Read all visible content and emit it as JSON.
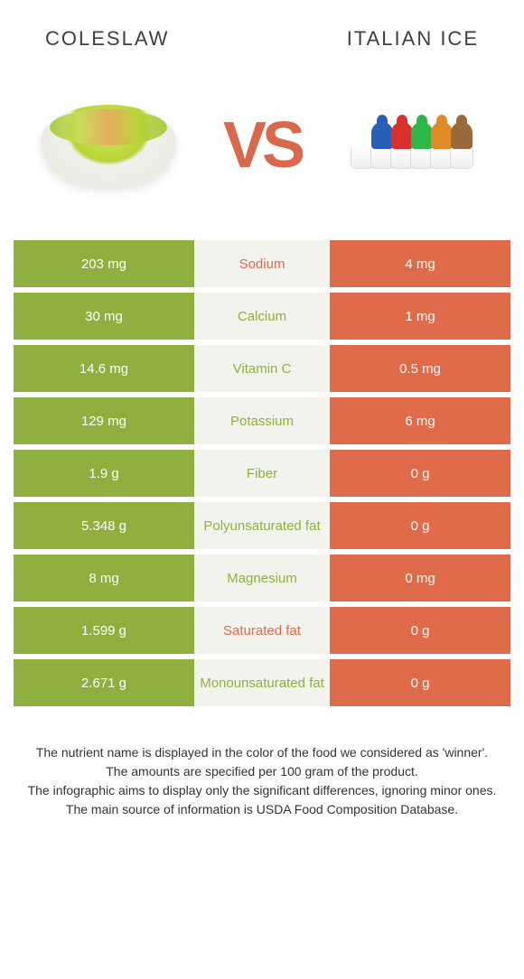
{
  "header": {
    "left_title": "Coleslaw",
    "right_title": "Italian ice"
  },
  "vs_text": "VS",
  "colors": {
    "left_bg": "#8fb03e",
    "right_bg": "#e06b4a",
    "mid_bg": "#f3f3ed",
    "winner_left": "#8fb03e",
    "winner_right": "#e06b4a",
    "text_white": "#ffffff"
  },
  "ice_colors": [
    "#ffffff",
    "#2a5fb8",
    "#d93030",
    "#2fb84a",
    "#e08a2a",
    "#9a6b3a"
  ],
  "rows": [
    {
      "left": "203 mg",
      "label": "Sodium",
      "right": "4 mg",
      "winner": "right"
    },
    {
      "left": "30 mg",
      "label": "Calcium",
      "right": "1 mg",
      "winner": "left"
    },
    {
      "left": "14.6 mg",
      "label": "Vitamin C",
      "right": "0.5 mg",
      "winner": "left"
    },
    {
      "left": "129 mg",
      "label": "Potassium",
      "right": "6 mg",
      "winner": "left"
    },
    {
      "left": "1.9 g",
      "label": "Fiber",
      "right": "0 g",
      "winner": "left"
    },
    {
      "left": "5.348 g",
      "label": "Polyunsaturated fat",
      "right": "0 g",
      "winner": "left"
    },
    {
      "left": "8 mg",
      "label": "Magnesium",
      "right": "0 mg",
      "winner": "left"
    },
    {
      "left": "1.599 g",
      "label": "Saturated fat",
      "right": "0 g",
      "winner": "right"
    },
    {
      "left": "2.671 g",
      "label": "Monounsaturated fat",
      "right": "0 g",
      "winner": "left"
    }
  ],
  "footer": {
    "line1": "The nutrient name is displayed in the color of the food we considered as 'winner'.",
    "line2": "The amounts are specified per 100 gram of the product.",
    "line3": "The infographic aims to display only the significant differences, ignoring minor ones.",
    "line4": "The main source of information is USDA Food Composition Database."
  }
}
